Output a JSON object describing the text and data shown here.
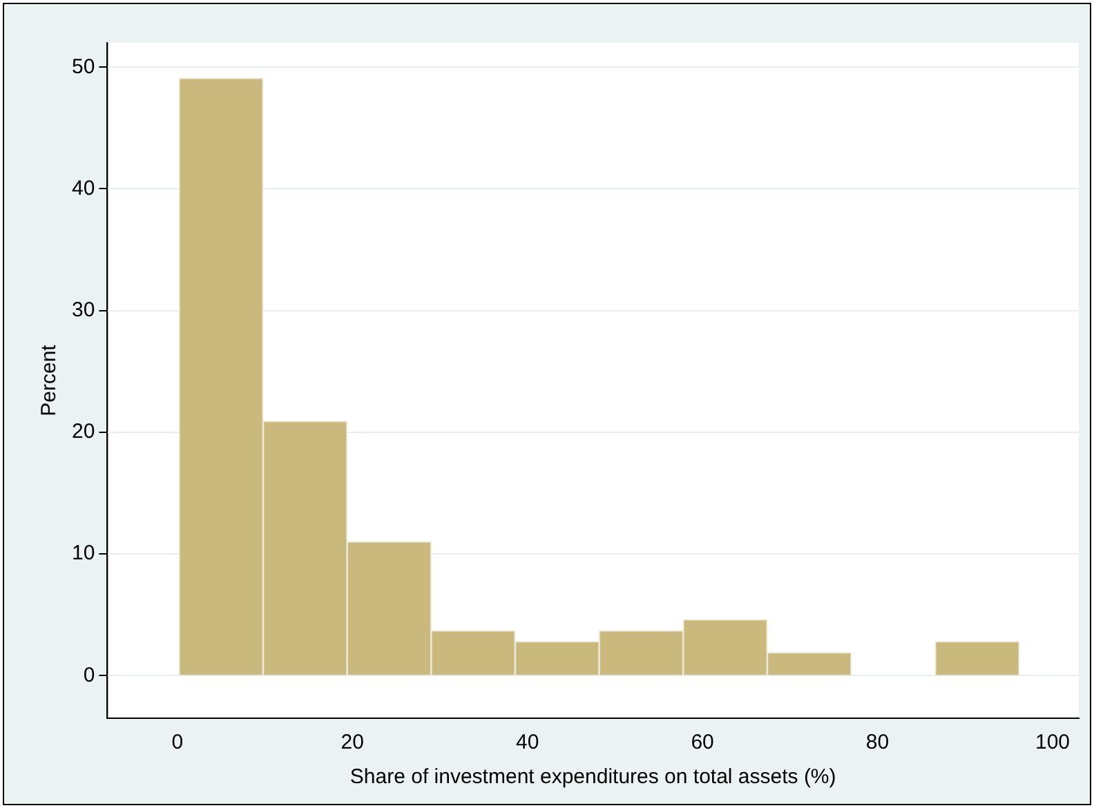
{
  "chart_data": {
    "type": "histogram",
    "xlabel": "Share of investment expenditures on total assets (%)",
    "ylabel": "Percent",
    "bins": [
      0.2,
      9.8,
      19.4,
      29.0,
      38.6,
      48.2,
      57.8,
      67.4,
      77.0,
      86.6,
      96.2
    ],
    "values": [
      49.1,
      20.9,
      11.0,
      3.7,
      2.8,
      3.7,
      4.6,
      1.9,
      0,
      2.8
    ],
    "color": "#c9b97c",
    "xlim": [
      -8,
      103
    ],
    "xticks": [
      0,
      20,
      40,
      60,
      80,
      100
    ],
    "ylim": [
      -3.5,
      52
    ],
    "yticks": [
      0,
      10,
      20,
      30,
      40,
      50
    ],
    "grid": "y",
    "legend": false
  }
}
